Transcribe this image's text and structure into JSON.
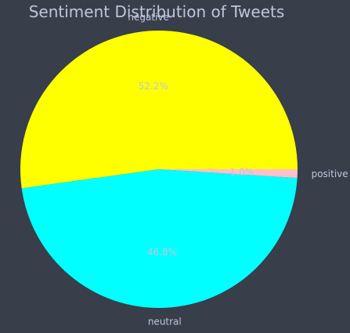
{
  "chart_data": {
    "type": "pie",
    "title": "Sentiment Distribution of Tweets",
    "categories": [
      "negative",
      "neutral",
      "positive"
    ],
    "values": [
      52.2,
      46.8,
      1.0
    ],
    "value_labels": [
      "52.2%",
      "46.8%",
      "1.0%"
    ],
    "colors": [
      "#ffff00",
      "#00ffff",
      "#ffc0cb"
    ],
    "start_angle_deg": 0,
    "direction": "counterclockwise",
    "background": "#383e4a",
    "text_color": "#bfc6dc"
  }
}
